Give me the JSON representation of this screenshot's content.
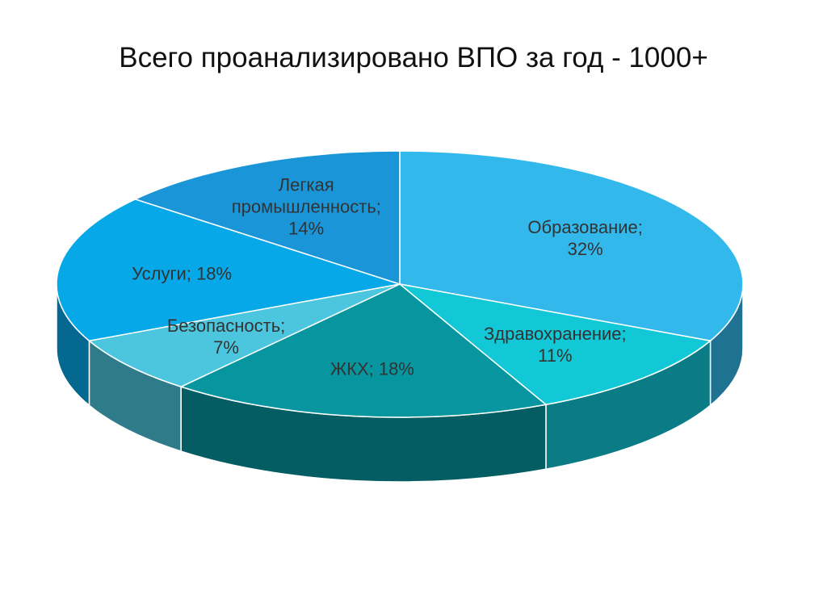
{
  "chart_data": {
    "type": "pie",
    "title": "Всего проанализировано ВПО за год - 1000+",
    "categories": [
      "Образование;",
      "Здравохранение;",
      "ЖКХ;",
      "Безопасность;",
      "Услуги;",
      "Легкая промышленность;"
    ],
    "values": [
      32,
      11,
      18,
      7,
      18,
      14
    ],
    "value_labels": [
      "32%",
      "11%",
      "18%",
      "7%",
      "18%",
      "14%"
    ],
    "colors": [
      "#33b8ec",
      "#12c8d6",
      "#0796a0",
      "#4cc6de",
      "#06a8e8",
      "#1a96d8"
    ]
  }
}
